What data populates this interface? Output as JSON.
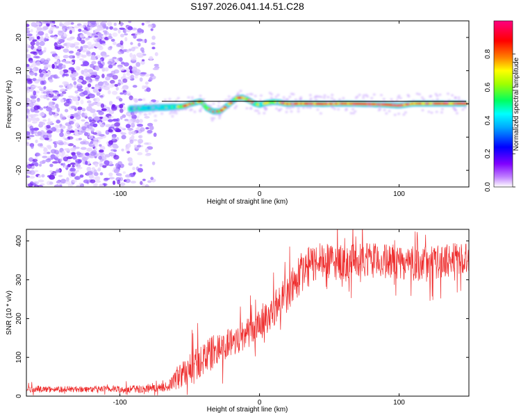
{
  "figure_title": "S197.2026.041.14.51.C28",
  "chart_data": [
    {
      "type": "heatmap",
      "name": "spectrogram",
      "title": "",
      "xlabel": "Height of straight line (km)",
      "ylabel": "Frequency (Hz)",
      "xlim": [
        -167,
        150
      ],
      "ylim": [
        -25,
        25
      ],
      "xticks": [
        -100,
        0,
        100
      ],
      "yticks": [
        -20,
        -10,
        0,
        10,
        20
      ],
      "colorbar": {
        "label": "Normalized spectral amplitude",
        "range": [
          0,
          1
        ],
        "ticks": [
          "0.0",
          "0.2",
          "0.4",
          "0.6",
          "0.8"
        ],
        "colormap": [
          "#ffffff",
          "#8000ff",
          "#0000ff",
          "#00ffff",
          "#00ff00",
          "#ffff00",
          "#ff0000",
          "#ff0080"
        ]
      },
      "noise_region_x": [
        -167,
        -73
      ],
      "signal_start_x": -93,
      "peak_frequency_trace": {
        "x": [
          -93,
          -80,
          -65,
          -55,
          -48,
          -42,
          -38,
          -33,
          -28,
          -24,
          -20,
          -16,
          -12,
          -8,
          -4,
          0,
          5,
          10,
          15,
          20,
          30,
          45,
          60,
          75,
          90,
          100,
          110,
          130,
          148
        ],
        "y": [
          -1.5,
          -1.2,
          -1.0,
          -0.8,
          0.2,
          0.8,
          -1.2,
          -2.3,
          -2.2,
          -0.8,
          0.5,
          1.8,
          1.9,
          1.2,
          0.2,
          -0.3,
          0.3,
          0.6,
          0.4,
          0.0,
          0.1,
          0.0,
          0.1,
          0.0,
          -0.2,
          -0.5,
          0.1,
          0.1,
          0.1
        ]
      },
      "reference_line_y": 0.8
    },
    {
      "type": "line",
      "name": "snr",
      "title": "",
      "xlabel": "Height of straight line (km)",
      "ylabel": "SNR (10 * v/v)",
      "xlim": [
        -167,
        150
      ],
      "ylim": [
        0,
        430
      ],
      "xticks": [
        -100,
        0,
        100
      ],
      "yticks": [
        0,
        100,
        200,
        300,
        400
      ],
      "series": [
        {
          "name": "SNR",
          "color": "#ee2b2b",
          "trend_x": [
            -167,
            -120,
            -90,
            -75,
            -65,
            -60,
            -50,
            -40,
            -30,
            -20,
            -10,
            0,
            10,
            20,
            30,
            40,
            60,
            80,
            100,
            120,
            150
          ],
          "trend_y": [
            18,
            18,
            18,
            20,
            25,
            45,
            70,
            100,
            120,
            140,
            160,
            180,
            225,
            265,
            320,
            345,
            345,
            350,
            345,
            340,
            360
          ],
          "spread_y": [
            8,
            8,
            10,
            10,
            12,
            30,
            40,
            45,
            45,
            40,
            40,
            40,
            45,
            50,
            55,
            50,
            45,
            45,
            45,
            45,
            40
          ]
        }
      ]
    }
  ]
}
